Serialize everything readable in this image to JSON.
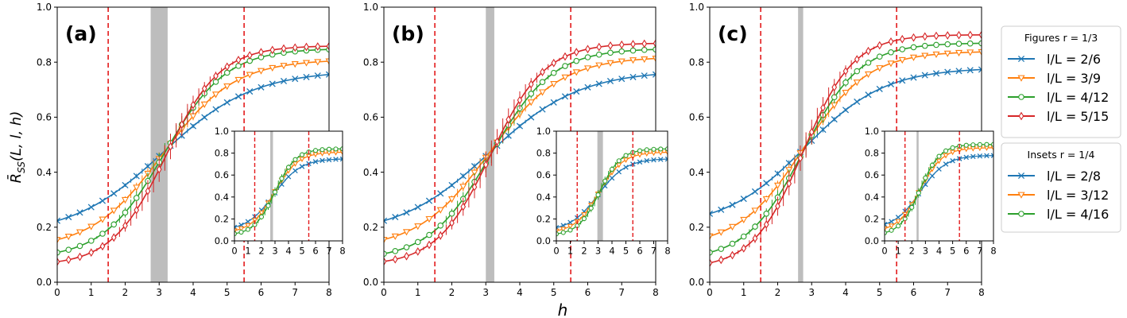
{
  "figure": {
    "xlabel": "h",
    "ylabel": "R̄",
    "ylabel_sub": "SS",
    "ylabel_args": "(L, l, h)"
  },
  "legends": {
    "figures": {
      "title": "Figures r = 1/3",
      "entries": [
        "l/L = 2/6",
        "l/L = 3/9",
        "l/L = 4/12",
        "l/L = 5/15"
      ]
    },
    "insets": {
      "title": "Insets r = 1/4",
      "entries": [
        "l/L = 2/8",
        "l/L = 3/12",
        "l/L = 4/16"
      ]
    }
  },
  "colors": {
    "blue": "#1f77b4",
    "orange": "#ff7f0e",
    "green": "#2ca02c",
    "red": "#d62728",
    "vline": "#e31a1c",
    "band": "#bdbdbd"
  },
  "markers": [
    "x",
    "tri_down",
    "circle",
    "diamond"
  ],
  "chart_data": [
    {
      "type": "line",
      "panel_label": "(a)",
      "xlim": [
        0,
        8
      ],
      "ylim": [
        0,
        1
      ],
      "xticks": [
        "0",
        "1",
        "2",
        "3",
        "4",
        "5",
        "6",
        "7",
        "8"
      ],
      "yticks": [
        "0.0",
        "0.2",
        "0.4",
        "0.6",
        "0.8",
        "1.0"
      ],
      "vlines": [
        1.5,
        5.5
      ],
      "band": [
        2.75,
        3.25
      ],
      "series": [
        {
          "name": "l/L = 2/6",
          "low": 0.17,
          "high": 0.77,
          "center": 3.1,
          "k": 0.75
        },
        {
          "name": "l/L = 3/9",
          "low": 0.12,
          "high": 0.81,
          "center": 3.1,
          "k": 0.95
        },
        {
          "name": "l/L = 4/12",
          "low": 0.085,
          "high": 0.85,
          "center": 3.15,
          "k": 1.1
        },
        {
          "name": "l/L = 5/15",
          "low": 0.06,
          "high": 0.86,
          "center": 3.2,
          "k": 1.25
        }
      ],
      "inset": {
        "xlim": [
          0,
          8
        ],
        "ylim": [
          0,
          1
        ],
        "xticks": [
          "0",
          "1",
          "2",
          "3",
          "4",
          "5",
          "6",
          "7",
          "8"
        ],
        "yticks": [
          "0.0",
          "0.2",
          "0.4",
          "0.6",
          "0.8",
          "1.0"
        ],
        "vlines": [
          1.5,
          5.5
        ],
        "band": [
          2.65,
          2.85
        ],
        "series": [
          {
            "name": "l/L = 2/8",
            "low": 0.09,
            "high": 0.75,
            "center": 2.9,
            "k": 1.0
          },
          {
            "name": "l/L = 3/12",
            "low": 0.07,
            "high": 0.81,
            "center": 2.95,
            "k": 1.15
          },
          {
            "name": "l/L = 4/16",
            "low": 0.05,
            "high": 0.84,
            "center": 3.0,
            "k": 1.3
          }
        ]
      }
    },
    {
      "type": "line",
      "panel_label": "(b)",
      "xlim": [
        0,
        8
      ],
      "ylim": [
        0,
        1
      ],
      "xticks": [
        "0",
        "1",
        "2",
        "3",
        "4",
        "5",
        "6",
        "7",
        "8"
      ],
      "yticks": [
        "0.0",
        "0.2",
        "0.4",
        "0.6",
        "0.8",
        "1.0"
      ],
      "vlines": [
        1.5,
        5.5
      ],
      "band": [
        3.0,
        3.25
      ],
      "series": [
        {
          "name": "l/L = 2/6",
          "low": 0.17,
          "high": 0.77,
          "center": 3.1,
          "k": 0.75
        },
        {
          "name": "l/L = 3/9",
          "low": 0.12,
          "high": 0.82,
          "center": 3.1,
          "k": 0.95
        },
        {
          "name": "l/L = 4/12",
          "low": 0.08,
          "high": 0.85,
          "center": 3.15,
          "k": 1.1
        },
        {
          "name": "l/L = 5/15",
          "low": 0.06,
          "high": 0.87,
          "center": 3.15,
          "k": 1.25
        }
      ],
      "inset": {
        "xlim": [
          0,
          8
        ],
        "ylim": [
          0,
          1
        ],
        "xticks": [
          "0",
          "1",
          "2",
          "3",
          "4",
          "5",
          "6",
          "7",
          "8"
        ],
        "yticks": [
          "0.0",
          "0.2",
          "0.4",
          "0.6",
          "0.8",
          "1.0"
        ],
        "vlines": [
          1.5,
          5.5
        ],
        "band": [
          2.95,
          3.35
        ],
        "series": [
          {
            "name": "l/L = 2/8",
            "low": 0.09,
            "high": 0.75,
            "center": 3.0,
            "k": 1.0
          },
          {
            "name": "l/L = 3/12",
            "low": 0.07,
            "high": 0.81,
            "center": 3.05,
            "k": 1.15
          },
          {
            "name": "l/L = 4/16",
            "low": 0.05,
            "high": 0.84,
            "center": 3.1,
            "k": 1.3
          }
        ]
      }
    },
    {
      "type": "line",
      "panel_label": "(c)",
      "xlim": [
        0,
        8
      ],
      "ylim": [
        0,
        1
      ],
      "xticks": [
        "0",
        "1",
        "2",
        "3",
        "4",
        "5",
        "6",
        "7",
        "8"
      ],
      "yticks": [
        "0.0",
        "0.2",
        "0.4",
        "0.6",
        "0.8",
        "1.0"
      ],
      "vlines": [
        1.5,
        5.5
      ],
      "band": [
        2.6,
        2.75
      ],
      "series": [
        {
          "name": "l/L = 2/6",
          "low": 0.2,
          "high": 0.78,
          "center": 2.8,
          "k": 0.85
        },
        {
          "name": "l/L = 3/9",
          "low": 0.13,
          "high": 0.84,
          "center": 2.75,
          "k": 1.05
        },
        {
          "name": "l/L = 4/12",
          "low": 0.08,
          "high": 0.87,
          "center": 2.75,
          "k": 1.2
        },
        {
          "name": "l/L = 5/15",
          "low": 0.05,
          "high": 0.9,
          "center": 2.75,
          "k": 1.35
        }
      ],
      "inset": {
        "xlim": [
          0,
          8
        ],
        "ylim": [
          0,
          1
        ],
        "xticks": [
          "0",
          "1",
          "2",
          "3",
          "4",
          "5",
          "6",
          "7",
          "8"
        ],
        "yticks": [
          "0.0",
          "0.2",
          "0.4",
          "0.6",
          "0.8",
          "1.0"
        ],
        "vlines": [
          1.5,
          5.5
        ],
        "band": [
          2.35,
          2.5
        ],
        "series": [
          {
            "name": "l/L = 2/8",
            "low": 0.11,
            "high": 0.78,
            "center": 2.6,
            "k": 1.05
          },
          {
            "name": "l/L = 3/12",
            "low": 0.08,
            "high": 0.85,
            "center": 2.6,
            "k": 1.2
          },
          {
            "name": "l/L = 4/16",
            "low": 0.05,
            "high": 0.88,
            "center": 2.6,
            "k": 1.35
          }
        ]
      }
    }
  ]
}
